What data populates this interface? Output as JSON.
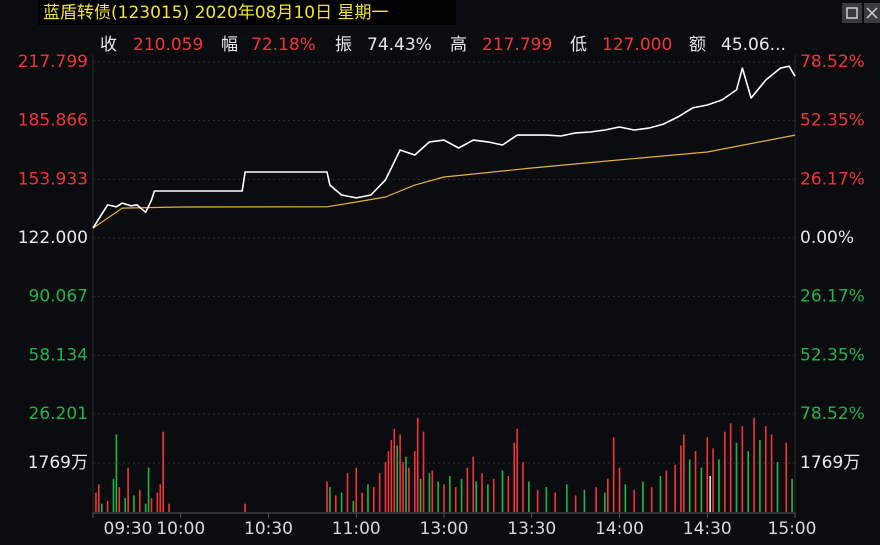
{
  "chart_data": {
    "type": "intraday",
    "title": "蓝盾转债(123015) 2020年08月10日 星期一",
    "stats": [
      {
        "label": "收",
        "value": "210.059",
        "color": "#f0343a"
      },
      {
        "label": "幅",
        "value": "72.18%",
        "color": "#f0343a"
      },
      {
        "label": "振",
        "value": "74.43%",
        "color": "#e8e8e8"
      },
      {
        "label": "高",
        "value": "217.799",
        "color": "#f0343a"
      },
      {
        "label": "低",
        "value": "127.000",
        "color": "#f0343a"
      },
      {
        "label": "额",
        "value": "45.06...",
        "color": "#e8e8e8"
      }
    ],
    "xlim": [
      0,
      240
    ],
    "xticks": [
      {
        "value": 0,
        "label": "09:30"
      },
      {
        "value": 30,
        "label": "10:00"
      },
      {
        "value": 60,
        "label": "10:30"
      },
      {
        "value": 90,
        "label": "11:00"
      },
      {
        "value": 120,
        "label": "13:00"
      },
      {
        "value": 150,
        "label": "13:30"
      },
      {
        "value": 180,
        "label": "14:00"
      },
      {
        "value": 210,
        "label": "14:30"
      },
      {
        "value": 240,
        "label": "15:00"
      }
    ],
    "ylim": [
      26.201,
      217.799
    ],
    "yticks": [
      {
        "value": 217.799,
        "label": "217.799"
      },
      {
        "value": 185.866,
        "label": "185.866"
      },
      {
        "value": 153.933,
        "label": "153.933"
      },
      {
        "value": 122,
        "label": "122.000"
      },
      {
        "value": 90.067,
        "label": "90.067"
      },
      {
        "value": 58.134,
        "label": "58.134"
      },
      {
        "value": 26.201,
        "label": "26.201"
      }
    ],
    "y2lim": [
      -78.52,
      78.52
    ],
    "y2ticks": [
      {
        "value": 78.52,
        "label": "78.52%"
      },
      {
        "value": 52.35,
        "label": "52.35%"
      },
      {
        "value": 26.17,
        "label": "26.17%"
      },
      {
        "value": 0,
        "label": "0.00%"
      },
      {
        "value": -26.17,
        "label": "26.17%"
      },
      {
        "value": -52.35,
        "label": "52.35%"
      },
      {
        "value": -78.52,
        "label": "78.52%"
      }
    ],
    "up_color": "#f0343a",
    "down_color": "#22b34a",
    "flat_color": "#e8e8e8",
    "price": {
      "color": "#ffffff",
      "x": [
        0,
        3,
        5,
        8,
        10,
        13,
        15,
        18,
        20,
        21,
        51,
        52,
        80,
        81,
        85,
        90,
        95,
        100,
        105,
        110,
        115,
        120,
        125,
        130,
        135,
        140,
        145,
        150,
        155,
        160,
        165,
        170,
        175,
        180,
        185,
        190,
        195,
        200,
        205,
        210,
        215,
        220,
        222,
        225,
        230,
        235,
        238,
        240
      ],
      "values": [
        127.4,
        135,
        140,
        139,
        141,
        139.5,
        140,
        136,
        142.7,
        147.6,
        147.6,
        157.9,
        157.9,
        150.8,
        145.4,
        143.8,
        145.4,
        153.6,
        169.9,
        167.2,
        174.3,
        175.3,
        171,
        175.3,
        174.3,
        172.6,
        178,
        178,
        178,
        177.5,
        179.2,
        179.7,
        180.8,
        182.4,
        180.8,
        181.8,
        184,
        187.9,
        192.8,
        194.4,
        197.1,
        202.6,
        214.5,
        198.2,
        208,
        214.5,
        215.5,
        210.059
      ]
    },
    "average": {
      "color": "#e8b03a",
      "x": [
        0,
        10,
        30,
        80,
        90,
        100,
        110,
        120,
        150,
        180,
        210,
        240
      ],
      "values": [
        127.4,
        138.3,
        138.9,
        139,
        141.6,
        144.3,
        150.8,
        155.2,
        160.1,
        164.5,
        168.8,
        178
      ]
    },
    "volume": {
      "ylim": [
        0,
        3538
      ],
      "yticks": [
        {
          "value": 1769,
          "label": "1769万"
        }
      ],
      "bars": [
        [
          1,
          700,
          "up"
        ],
        [
          2,
          1000,
          "up"
        ],
        [
          3,
          300,
          "down"
        ],
        [
          5,
          400,
          "up"
        ],
        [
          7,
          1200,
          "down"
        ],
        [
          8,
          2800,
          "down"
        ],
        [
          9,
          900,
          "up"
        ],
        [
          11,
          500,
          "down"
        ],
        [
          12,
          1600,
          "up"
        ],
        [
          14,
          600,
          "down"
        ],
        [
          16,
          800,
          "up"
        ],
        [
          18,
          300,
          "down"
        ],
        [
          19,
          1600,
          "down"
        ],
        [
          20,
          500,
          "up"
        ],
        [
          22,
          700,
          "up"
        ],
        [
          23,
          1000,
          "up"
        ],
        [
          24,
          2900,
          "up"
        ],
        [
          26,
          300,
          "up"
        ],
        [
          52,
          300,
          "up"
        ],
        [
          80,
          1100,
          "up"
        ],
        [
          81,
          900,
          "down"
        ],
        [
          83,
          600,
          "up"
        ],
        [
          85,
          700,
          "down"
        ],
        [
          87,
          1400,
          "up"
        ],
        [
          89,
          400,
          "down"
        ],
        [
          90,
          1600,
          "up"
        ],
        [
          92,
          700,
          "up"
        ],
        [
          94,
          1000,
          "down"
        ],
        [
          96,
          900,
          "up"
        ],
        [
          98,
          1400,
          "up"
        ],
        [
          100,
          1800,
          "up"
        ],
        [
          101,
          2200,
          "up"
        ],
        [
          102,
          2600,
          "up"
        ],
        [
          103,
          3000,
          "up"
        ],
        [
          104,
          2400,
          "down"
        ],
        [
          105,
          2800,
          "up"
        ],
        [
          106,
          1800,
          "up"
        ],
        [
          107,
          2000,
          "down"
        ],
        [
          108,
          1600,
          "up"
        ],
        [
          110,
          2200,
          "up"
        ],
        [
          111,
          3400,
          "up"
        ],
        [
          112,
          1200,
          "down"
        ],
        [
          113,
          2900,
          "up"
        ],
        [
          115,
          1400,
          "down"
        ],
        [
          116,
          1500,
          "up"
        ],
        [
          118,
          1100,
          "down"
        ],
        [
          120,
          1000,
          "up"
        ],
        [
          122,
          1300,
          "down"
        ],
        [
          124,
          900,
          "up"
        ],
        [
          126,
          1200,
          "down"
        ],
        [
          128,
          1600,
          "up"
        ],
        [
          130,
          2000,
          "up"
        ],
        [
          131,
          1100,
          "down"
        ],
        [
          133,
          1400,
          "up"
        ],
        [
          135,
          1000,
          "down"
        ],
        [
          137,
          1200,
          "up"
        ],
        [
          140,
          1500,
          "down"
        ],
        [
          142,
          1300,
          "up"
        ],
        [
          144,
          2500,
          "up"
        ],
        [
          145,
          3000,
          "up"
        ],
        [
          147,
          1800,
          "up"
        ],
        [
          149,
          1100,
          "down"
        ],
        [
          152,
          800,
          "up"
        ],
        [
          155,
          900,
          "down"
        ],
        [
          158,
          700,
          "up"
        ],
        [
          162,
          1000,
          "down"
        ],
        [
          165,
          600,
          "up"
        ],
        [
          168,
          800,
          "down"
        ],
        [
          172,
          900,
          "up"
        ],
        [
          175,
          700,
          "down"
        ],
        [
          176,
          1200,
          "up"
        ],
        [
          178,
          2700,
          "up"
        ],
        [
          180,
          1600,
          "up"
        ],
        [
          182,
          1000,
          "down"
        ],
        [
          185,
          800,
          "up"
        ],
        [
          188,
          1100,
          "down"
        ],
        [
          191,
          900,
          "up"
        ],
        [
          194,
          1300,
          "down"
        ],
        [
          196,
          1500,
          "up"
        ],
        [
          199,
          1700,
          "up"
        ],
        [
          201,
          2400,
          "up"
        ],
        [
          202,
          2800,
          "up"
        ],
        [
          204,
          1900,
          "down"
        ],
        [
          206,
          2200,
          "up"
        ],
        [
          208,
          1600,
          "down"
        ],
        [
          210,
          2700,
          "up"
        ],
        [
          211,
          1300,
          "flat"
        ],
        [
          212,
          2300,
          "up"
        ],
        [
          214,
          1900,
          "down"
        ],
        [
          216,
          2900,
          "up"
        ],
        [
          218,
          3200,
          "up"
        ],
        [
          220,
          2500,
          "down"
        ],
        [
          222,
          3100,
          "up"
        ],
        [
          224,
          2200,
          "down"
        ],
        [
          226,
          3400,
          "up"
        ],
        [
          228,
          2600,
          "down"
        ],
        [
          230,
          3100,
          "up"
        ],
        [
          232,
          2800,
          "up"
        ],
        [
          234,
          1800,
          "down"
        ],
        [
          237,
          2500,
          "up"
        ],
        [
          239,
          1200,
          "down"
        ]
      ]
    }
  }
}
